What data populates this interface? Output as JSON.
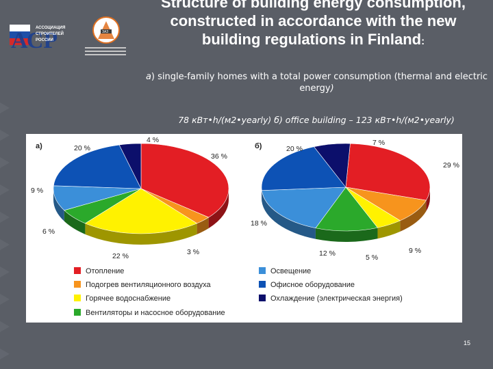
{
  "title": "Structure of  building energy consumption, constructed in accordance with the new building regulations in Finland",
  "title_colon": ":",
  "subtitle_prefix": "a",
  "subtitle_text": ") single-family homes with a total power consumption (thermal and electric energy",
  "subtitle_suffix": ")",
  "caption": "78 кВт•h/(м2•yearly)  б) office building – 123 кВт•h/(м2•yearly)",
  "page_number": "15",
  "logos": {
    "asr_letters": "АСР",
    "asr_lines": [
      "АССОЦИАЦИЯ",
      "СТРОИТЕЛЕЙ",
      "РОССИИ"
    ],
    "second_logo_text": "ЗАЗ"
  },
  "colors": {
    "heating": "#e31e24",
    "ventilation_air": "#f7941d",
    "hot_water": "#fff200",
    "fans_pumps": "#2ba92b",
    "lighting": "#3b8fd9",
    "office_equipment": "#0d52b5",
    "cooling": "#0c0f6b"
  },
  "chart_data": [
    {
      "type": "pie",
      "panel_label": "а)",
      "unit": "%",
      "slices": [
        {
          "key": "heating",
          "value": 36,
          "label": "36 %"
        },
        {
          "key": "ventilation_air",
          "value": 3,
          "label": "3 %"
        },
        {
          "key": "hot_water",
          "value": 22,
          "label": "22 %"
        },
        {
          "key": "fans_pumps",
          "value": 6,
          "label": "6 %"
        },
        {
          "key": "lighting",
          "value": 9,
          "label": "9 %"
        },
        {
          "key": "office_equipment",
          "value": 20,
          "label": "20 %"
        },
        {
          "key": "cooling",
          "value": 4,
          "label": "4 %"
        }
      ]
    },
    {
      "type": "pie",
      "panel_label": "б)",
      "unit": "%",
      "slices": [
        {
          "key": "heating",
          "value": 29,
          "label": "29 %"
        },
        {
          "key": "ventilation_air",
          "value": 9,
          "label": "9 %"
        },
        {
          "key": "hot_water",
          "value": 5,
          "label": "5 %"
        },
        {
          "key": "fans_pumps",
          "value": 12,
          "label": "12 %"
        },
        {
          "key": "lighting",
          "value": 18,
          "label": "18 %"
        },
        {
          "key": "office_equipment",
          "value": 20,
          "label": "20 %"
        },
        {
          "key": "cooling",
          "value": 7,
          "label": "7 %"
        }
      ]
    }
  ],
  "legend": [
    {
      "key": "heating",
      "label": "Отопление"
    },
    {
      "key": "ventilation_air",
      "label": "Подогрев вентиляционного воздуха"
    },
    {
      "key": "hot_water",
      "label": "Горячее водоснабжение"
    },
    {
      "key": "fans_pumps",
      "label": "Вентиляторы и насосное оборудование"
    },
    {
      "key": "lighting",
      "label": "Освещение"
    },
    {
      "key": "office_equipment",
      "label": "Офисное оборудование"
    },
    {
      "key": "cooling",
      "label": "Охлаждение (электрическая энергия)"
    }
  ]
}
